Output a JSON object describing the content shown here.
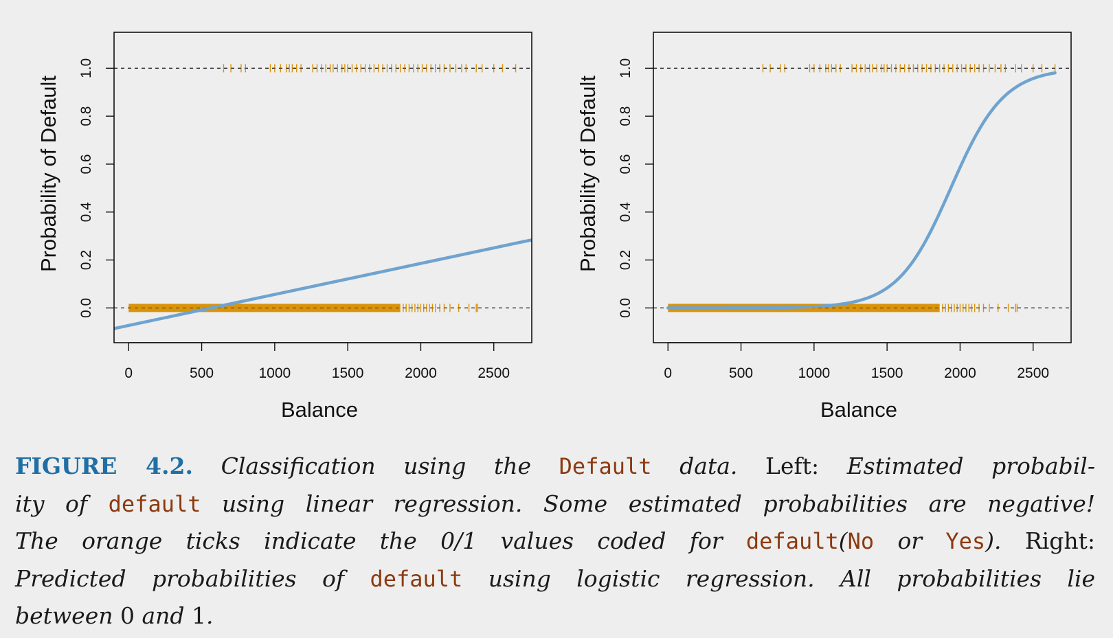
{
  "chart_data": [
    {
      "type": "scatter+line",
      "panel": "left",
      "model": "linear regression",
      "xlabel": "Balance",
      "ylabel": "Probability of Default",
      "xlim": [
        -100,
        2760
      ],
      "ylim": [
        -0.145,
        1.15
      ],
      "xticks": [
        0,
        500,
        1000,
        1500,
        2000,
        2500
      ],
      "yticks": [
        0.0,
        0.2,
        0.4,
        0.6,
        0.8,
        1.0
      ],
      "xtick_labels": [
        "0",
        "500",
        "1000",
        "1500",
        "2000",
        "2500"
      ],
      "ytick_labels": [
        "0.0",
        "0.2",
        "0.4",
        "0.6",
        "0.8",
        "1.0"
      ],
      "reference_lines_y": [
        0,
        1
      ],
      "fit_line": {
        "x": [
          -100,
          2760
        ],
        "y": [
          -0.086,
          0.284
        ]
      },
      "rug_yes": [
        650,
        700,
        770,
        800,
        970,
        1000,
        1040,
        1080,
        1100,
        1120,
        1150,
        1180,
        1260,
        1290,
        1320,
        1350,
        1380,
        1400,
        1430,
        1460,
        1480,
        1500,
        1530,
        1560,
        1590,
        1620,
        1650,
        1680,
        1710,
        1740,
        1770,
        1800,
        1830,
        1860,
        1890,
        1920,
        1950,
        1980,
        2010,
        2040,
        2070,
        2100,
        2130,
        2160,
        2200,
        2240,
        2280,
        2310,
        2380,
        2420,
        2500,
        2560,
        2650
      ],
      "rug_no_dense_range": [
        0,
        1860
      ],
      "rug_no": [
        1880,
        1900,
        1920,
        1940,
        1960,
        1980,
        2000,
        2020,
        2040,
        2060,
        2080,
        2100,
        2130,
        2160,
        2200,
        2260,
        2330,
        2380,
        2390
      ]
    },
    {
      "type": "scatter+line",
      "panel": "right",
      "model": "logistic regression",
      "xlabel": "Balance",
      "ylabel": "Probability of Default",
      "xlim": [
        -100,
        2760
      ],
      "ylim": [
        -0.145,
        1.15
      ],
      "xticks": [
        0,
        500,
        1000,
        1500,
        2000,
        2500
      ],
      "yticks": [
        0.0,
        0.2,
        0.4,
        0.6,
        0.8,
        1.0
      ],
      "xtick_labels": [
        "0",
        "500",
        "1000",
        "1500",
        "2000",
        "2500"
      ],
      "ytick_labels": [
        "0.0",
        "0.2",
        "0.4",
        "0.6",
        "0.8",
        "1.0"
      ],
      "reference_lines_y": [
        0,
        1
      ],
      "fit_curve": {
        "intercept": -10.65,
        "slope": 0.0055,
        "x_range": [
          0,
          2650
        ]
      },
      "rug_yes": [
        650,
        700,
        770,
        800,
        970,
        1000,
        1040,
        1080,
        1100,
        1120,
        1150,
        1180,
        1260,
        1290,
        1320,
        1350,
        1380,
        1400,
        1430,
        1460,
        1480,
        1500,
        1530,
        1560,
        1590,
        1620,
        1650,
        1680,
        1710,
        1740,
        1770,
        1800,
        1830,
        1860,
        1890,
        1920,
        1950,
        1980,
        2010,
        2040,
        2070,
        2100,
        2130,
        2160,
        2200,
        2240,
        2280,
        2310,
        2380,
        2420,
        2500,
        2560,
        2650
      ],
      "rug_no_dense_range": [
        0,
        1860
      ],
      "rug_no": [
        1880,
        1900,
        1920,
        1940,
        1960,
        1980,
        2000,
        2020,
        2040,
        2060,
        2080,
        2100,
        2130,
        2160,
        2200,
        2260,
        2330,
        2380,
        2390
      ]
    }
  ],
  "colors": {
    "rug": "#d9940a",
    "fit": "#6fa3cf",
    "figure_number": "#1f6fa5",
    "code": "#8b3a0f",
    "background": "#eeeeee"
  },
  "caption": {
    "figure_number": "FIGURE 4.2.",
    "l1_a": "Classification using the",
    "l1_code": "Default",
    "l1_b": "data.",
    "l1_c": "Left:",
    "l1_d": "Estimated probabil-",
    "l2_a": "ity of",
    "l2_code": "default",
    "l2_b": "using linear regression. Some estimated probabilities are negative!",
    "l3_a": "The orange ticks indicate the 0/1 values coded for",
    "l3_code1": "default",
    "l3_p1": "(",
    "l3_code2": "No",
    "l3_or": "or",
    "l3_code3": "Yes",
    "l3_p2": ").",
    "l3_right": "Right:",
    "l4_a": "Predicted probabilities of",
    "l4_code": "default",
    "l4_b": "using logistic regression. All probabilities lie",
    "l5_a": "between",
    "l5_zero": "0",
    "l5_and": "and",
    "l5_one": "1",
    "l5_dot": "."
  }
}
